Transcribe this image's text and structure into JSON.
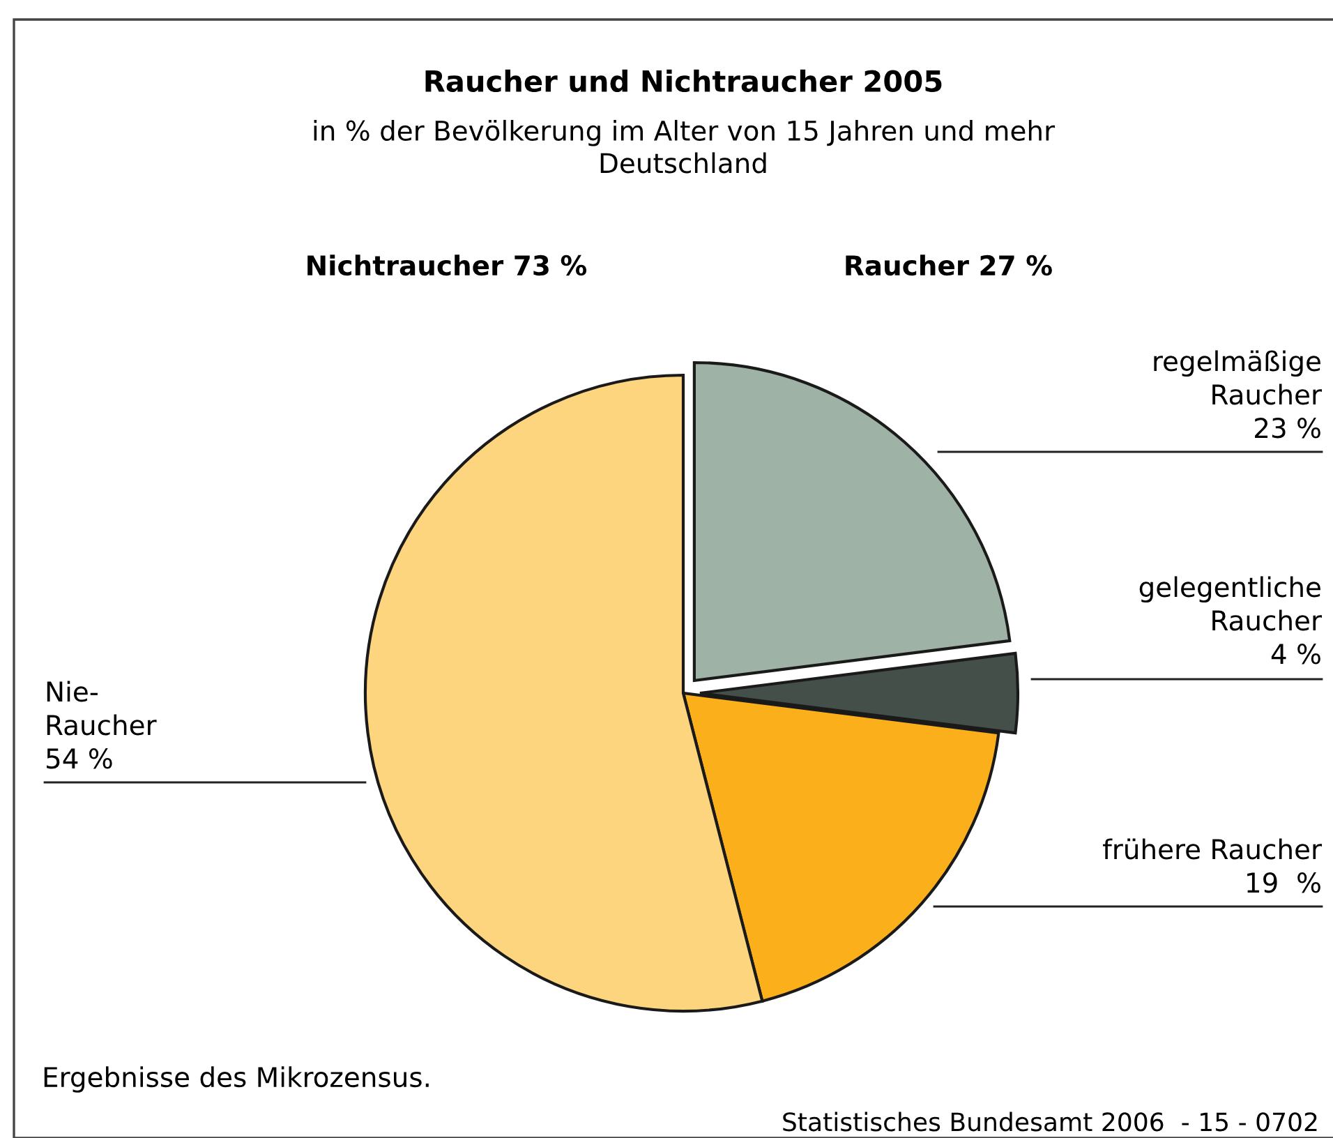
{
  "chart_data": {
    "type": "pie",
    "title": "Raucher und Nichtraucher 2005",
    "subtitle": "in % der Bevölkerung im Alter von 15 Jahren und mehr\nDeutschland",
    "categories": [
      "regelmäßige\nRaucher",
      "gelegentliche\nRaucher",
      "frühere Raucher",
      "Nie-\nRaucher"
    ],
    "values": [
      23,
      4,
      19,
      54
    ],
    "value_labels": [
      "23 %",
      "4 %",
      "19  %",
      "54 %"
    ],
    "colors": [
      "#9eb2a6",
      "#434f48",
      "#fbb01b",
      "#fdd57e"
    ],
    "annotations": [
      "Nichtraucher 73 %",
      "Raucher 27 %",
      "Ergebnisse des Mikrozensus.",
      "Statistisches Bundesamt 2006  - 15 - 0702"
    ]
  }
}
